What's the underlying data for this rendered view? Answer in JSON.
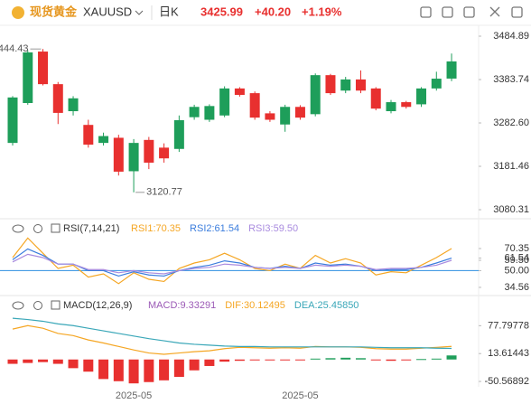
{
  "header": {
    "name": "现货黄金",
    "symbol": "XAUUSD",
    "period": "日K",
    "price": "3425.99",
    "change": "+40.20",
    "change_pct": "+1.19%"
  },
  "chart_data": [
    {
      "type": "candlestick",
      "categories": [
        null,
        null,
        null,
        null,
        null,
        null,
        null,
        null,
        "2025-05",
        null,
        null,
        null,
        null,
        null,
        null,
        null,
        null,
        null,
        null,
        "2025-05",
        null,
        null,
        null,
        null,
        null,
        null,
        null,
        null,
        null,
        null
      ],
      "open": [
        3236,
        3329,
        3449,
        3373,
        3310,
        3278,
        3236,
        3248,
        3170,
        3243,
        3225,
        3222,
        3296,
        3290,
        3300,
        3363,
        3352,
        3305,
        3279,
        3320,
        3303,
        3394,
        3358,
        3384,
        3363,
        3310,
        3331,
        3326,
        3363,
        3386
      ],
      "high": [
        3345,
        3452,
        3455,
        3378,
        3345,
        3290,
        3260,
        3255,
        3245,
        3250,
        3235,
        3300,
        3325,
        3326,
        3368,
        3366,
        3356,
        3310,
        3325,
        3324,
        3398,
        3397,
        3390,
        3405,
        3366,
        3336,
        3334,
        3366,
        3402,
        3444.43
      ],
      "low": [
        3230,
        3325,
        3370,
        3280,
        3300,
        3225,
        3230,
        3160,
        3120.77,
        3175,
        3190,
        3215,
        3290,
        3285,
        3296,
        3344,
        3290,
        3285,
        3262,
        3290,
        3298,
        3348,
        3352,
        3352,
        3312,
        3305,
        3316,
        3320,
        3358,
        3380
      ],
      "close": [
        3342,
        3447,
        3373,
        3306,
        3340,
        3232,
        3252,
        3169,
        3236,
        3190,
        3200,
        3289,
        3320,
        3322,
        3363,
        3348,
        3295,
        3290,
        3320,
        3295,
        3394,
        3352,
        3384,
        3358,
        3316,
        3331,
        3320,
        3363,
        3385.79,
        3425.99
      ],
      "up_color": "#1e9e5a",
      "down_color": "#e8302f",
      "annotations": [
        "3444.43",
        "3120.77"
      ],
      "ylim": [
        3063.5,
        3506
      ],
      "yticks": [
        3484.89,
        3383.74,
        {
          "value": 3282.6,
          "label": "3282.60"
        },
        3181.46,
        3080.31
      ]
    },
    {
      "type": "line",
      "title": "RSI(7,14,21)",
      "series": [
        {
          "name": "RSI1:70.35",
          "color": "#f5a623",
          "values": [
            62,
            80,
            66,
            52,
            55,
            44,
            47,
            38,
            48,
            42,
            40,
            52,
            57,
            60,
            66,
            60,
            52,
            50,
            56,
            52,
            64,
            57,
            61,
            57,
            46,
            49,
            48,
            55,
            62,
            70.35
          ]
        },
        {
          "name": "RSI2:61.54",
          "color": "#3b7ddd",
          "values": [
            60,
            70,
            64,
            56,
            56,
            50,
            50,
            45,
            49,
            46,
            45,
            50,
            53,
            55,
            59,
            57,
            53,
            52,
            54,
            52,
            57,
            55,
            56,
            54,
            50,
            51,
            51,
            53,
            57,
            61.54
          ]
        },
        {
          "name": "RSI3:59.50",
          "color": "#a98bdf",
          "values": [
            58,
            65,
            62,
            56,
            56,
            51,
            51,
            48,
            50,
            48,
            47,
            50,
            52,
            53,
            56,
            55,
            53,
            52,
            53,
            52,
            55,
            54,
            55,
            54,
            51,
            52,
            52,
            53,
            55,
            59.5
          ]
        }
      ],
      "ylim": [
        28.7,
        95.3
      ],
      "yticks": [
        70.35,
        61.54,
        {
          "value": 59.5,
          "label": "59.50"
        },
        {
          "value": 50,
          "label": "50.00"
        },
        34.56
      ],
      "level": 50,
      "level_color": "#2b8ee0"
    },
    {
      "type": "macd",
      "title": "MACD(12,26,9)",
      "series": [
        {
          "name": "MACD:9.33291",
          "color": "#9b59b6",
          "values": [
            -10,
            -8,
            -6,
            -10,
            -20,
            -28,
            -45,
            -50,
            -55,
            -52,
            -48,
            -40,
            -25,
            -15,
            -5,
            -3,
            -2,
            -1,
            -2,
            -1,
            2,
            3,
            4,
            3,
            -2,
            -3,
            -2,
            1,
            2,
            9.33291
          ]
        },
        {
          "name": "DIF:30.12495",
          "color": "#f5a623",
          "values": [
            70,
            78,
            72,
            60,
            55,
            45,
            38,
            30,
            22,
            15,
            12,
            15,
            18,
            20,
            25,
            28,
            27,
            26,
            27,
            26,
            30,
            29,
            29,
            28,
            25,
            24,
            24,
            26,
            28,
            30.12495
          ]
        },
        {
          "name": "DEA:25.45850",
          "color": "#3aa7b8",
          "values": [
            95,
            92,
            88,
            82,
            78,
            72,
            66,
            60,
            54,
            48,
            43,
            38,
            35,
            33,
            31,
            30,
            30,
            29,
            29,
            29,
            29,
            29,
            29,
            29,
            28,
            27,
            27,
            27,
            26,
            25.4585
          ]
        }
      ],
      "up_color": "#1e9e5a",
      "down_color": "#e8302f",
      "ylim": [
        -56.7,
        141
      ],
      "yticks": [
        77.79778,
        13.61443,
        -50.56892
      ]
    }
  ]
}
